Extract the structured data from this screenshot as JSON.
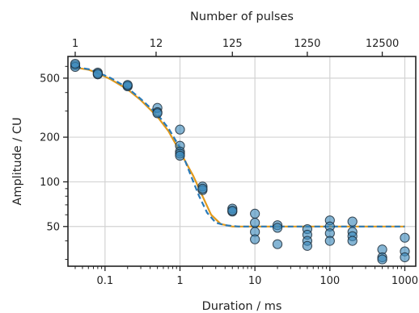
{
  "chart_data": {
    "type": "scatter",
    "title": "",
    "xlabel": "Duration / ms",
    "ylabel": "Amplitude / CU",
    "x2label": "Number of pulses",
    "xscale": "log",
    "yscale": "log",
    "xlim": [
      0.032,
      1400
    ],
    "ylim": [
      27,
      700
    ],
    "grid": true,
    "x_ticks": [
      {
        "value": 0.1,
        "label": "0.1"
      },
      {
        "value": 1,
        "label": "1"
      },
      {
        "value": 10,
        "label": "10"
      },
      {
        "value": 100,
        "label": "100"
      },
      {
        "value": 1000,
        "label": "1000"
      }
    ],
    "x2_ticks": [
      {
        "value": 0.04,
        "label": "1"
      },
      {
        "value": 0.48,
        "label": "12"
      },
      {
        "value": 5,
        "label": "125"
      },
      {
        "value": 50,
        "label": "1250"
      },
      {
        "value": 500,
        "label": "12500"
      }
    ],
    "y_ticks": [
      {
        "value": 50,
        "label": "50"
      },
      {
        "value": 100,
        "label": "100"
      },
      {
        "value": 200,
        "label": "200"
      },
      {
        "value": 500,
        "label": "500"
      }
    ],
    "points": {
      "name": "Measurements",
      "color": "#3a87b9",
      "x": [
        0.04,
        0.04,
        0.04,
        0.08,
        0.08,
        0.08,
        0.2,
        0.2,
        0.2,
        0.5,
        0.5,
        0.5,
        1,
        1,
        1,
        1,
        1,
        2,
        2,
        2,
        5,
        5,
        5,
        10,
        10,
        10,
        10,
        20,
        20,
        20,
        50,
        50,
        50,
        50,
        100,
        100,
        100,
        100,
        200,
        200,
        200,
        200,
        500,
        500,
        500,
        1000,
        1000,
        1000
      ],
      "y": [
        610,
        595,
        625,
        545,
        530,
        535,
        445,
        440,
        450,
        315,
        295,
        290,
        225,
        175,
        160,
        155,
        150,
        93,
        88,
        90,
        66,
        63,
        64,
        61,
        53,
        46,
        41,
        51,
        49,
        38,
        48,
        44,
        40,
        37,
        55,
        50,
        45,
        40,
        54,
        46,
        43,
        40,
        35,
        31,
        30,
        42,
        34,
        31
      ]
    },
    "series": [
      {
        "name": "Fit (solid)",
        "color": "#e29a1c",
        "style": "solid",
        "x": [
          0.04,
          0.06,
          0.08,
          0.12,
          0.2,
          0.3,
          0.5,
          0.7,
          1,
          1.5,
          2,
          2.6,
          3.5,
          5,
          10,
          50,
          200,
          1000
        ],
        "y": [
          590,
          570,
          540,
          490,
          420,
          355,
          275,
          220,
          160,
          110,
          80,
          60,
          52,
          50,
          50,
          50,
          50,
          50
        ]
      },
      {
        "name": "Fit (dashed)",
        "color": "#2a7ab8",
        "style": "dashed",
        "x": [
          0.04,
          0.06,
          0.08,
          0.12,
          0.2,
          0.3,
          0.5,
          0.7,
          1,
          1.4,
          1.8,
          2.3,
          3,
          4,
          6,
          10,
          50,
          200,
          1000
        ],
        "y": [
          595,
          575,
          548,
          500,
          430,
          362,
          285,
          230,
          170,
          110,
          80,
          62,
          53,
          51,
          50,
          50,
          50,
          50,
          50
        ]
      }
    ]
  }
}
